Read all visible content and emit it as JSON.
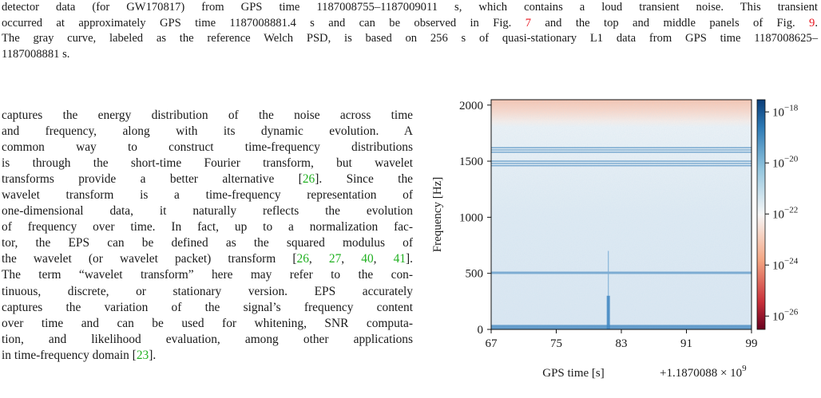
{
  "caption": {
    "lines": [
      {
        "segments": [
          {
            "text": "detector data (for GW170817) from GPS time 1187008755–1187009011 s, which contains a loud transient noise. This transient"
          }
        ]
      },
      {
        "segments": [
          {
            "text": "occurred at approximately GPS time 1187008881.4 s and can be observed in Fig. "
          },
          {
            "text": "7",
            "ref": true
          },
          {
            "text": " and the top and middle panels of Fig. "
          },
          {
            "text": "9",
            "ref": true
          },
          {
            "text": "."
          }
        ]
      },
      {
        "segments": [
          {
            "text": "The gray curve, labeled as the reference Welch PSD, is based on 256 s of quasi-stationary L1 data from GPS time 1187008625–"
          }
        ]
      },
      {
        "segments": [
          {
            "text": "1187008881 s."
          }
        ]
      }
    ]
  },
  "body": {
    "lines": [
      [
        {
          "text": "captures the energy distribution of the noise across time"
        }
      ],
      [
        {
          "text": "and frequency, along with its dynamic evolution.  A"
        }
      ],
      [
        {
          "text": "common way to construct time-frequency distributions"
        }
      ],
      [
        {
          "text": "is through the short-time Fourier transform, but wavelet"
        }
      ],
      [
        {
          "text": "transforms provide a better alternative ["
        },
        {
          "text": "26",
          "cite": true
        },
        {
          "text": "].  Since the"
        }
      ],
      [
        {
          "text": "wavelet transform is a time-frequency representation of"
        }
      ],
      [
        {
          "text": "one-dimensional data, it naturally reflects the evolution"
        }
      ],
      [
        {
          "text": "of frequency over time. In fact, up to a normalization fac-"
        }
      ],
      [
        {
          "text": "tor, the EPS can be defined as the squared modulus of"
        }
      ],
      [
        {
          "text": "the wavelet (or wavelet packet) transform ["
        },
        {
          "text": "26",
          "cite": true
        },
        {
          "text": ", "
        },
        {
          "text": "27",
          "cite": true
        },
        {
          "text": ", "
        },
        {
          "text": "40",
          "cite": true
        },
        {
          "text": ", "
        },
        {
          "text": "41",
          "cite": true
        },
        {
          "text": "]."
        }
      ],
      [
        {
          "text": "The term “wavelet transform” here may refer to the con-"
        }
      ],
      [
        {
          "text": "tinuous, discrete, or stationary version. EPS accurately"
        }
      ],
      [
        {
          "text": "captures the variation of the signal’s frequency content"
        }
      ],
      [
        {
          "text": "over time and can be used for whitening, SNR computa-"
        }
      ],
      [
        {
          "text": "tion, and likelihood evaluation, among other applications"
        }
      ],
      [
        {
          "text": "in time-frequency domain ["
        },
        {
          "text": "23",
          "cite": true
        },
        {
          "text": "]."
        }
      ]
    ]
  },
  "colors": {
    "ref_link": "#e8141e",
    "cite_link": "#20b020",
    "colormap_low": "#b2182b",
    "colormap_mid": "#f7f7f7",
    "colormap_high": "#2166ac"
  },
  "chart_data": {
    "type": "heatmap",
    "xlabel": "GPS time [s]",
    "ylabel": "Frequency [Hz]",
    "offset_label": "+1.1870088 × 10^9",
    "xlim": [
      67,
      99
    ],
    "ylim": [
      0,
      2048
    ],
    "x_ticks": [
      67,
      75,
      83,
      91,
      99
    ],
    "y_ticks": [
      0,
      500,
      1000,
      1500,
      2000
    ],
    "colorbar": {
      "scale": "log",
      "ticks": [
        {
          "base": "10",
          "exp": "−18",
          "value": 1e-18
        },
        {
          "base": "10",
          "exp": "−20",
          "value": 1e-20
        },
        {
          "base": "10",
          "exp": "−22",
          "value": 1e-22
        },
        {
          "base": "10",
          "exp": "−24",
          "value": 1e-24
        },
        {
          "base": "10",
          "exp": "−26",
          "value": 1e-26
        }
      ],
      "range": [
        3e-27,
        3e-18
      ]
    },
    "transient_time": 81.4,
    "horizontal_lines_hz": [
      1460,
      1480,
      1500,
      1580,
      1600,
      1620,
      510,
      500
    ]
  }
}
